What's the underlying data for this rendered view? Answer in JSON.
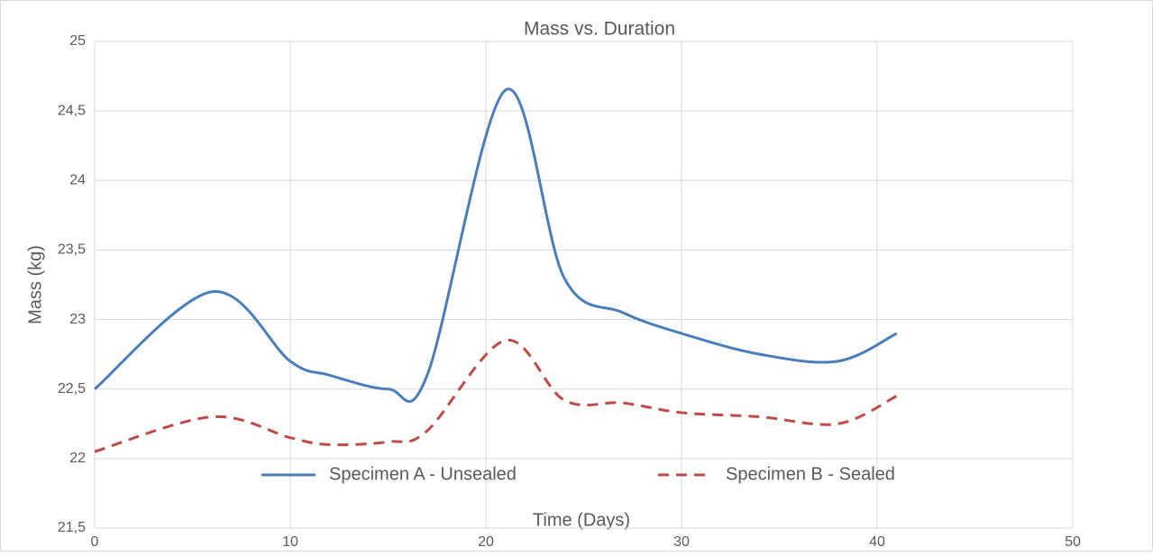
{
  "chart_data": {
    "type": "line",
    "title": "Mass vs. Duration",
    "x_label": "Time (Days)",
    "y_label": "Mass (kg)",
    "x": [
      0,
      6,
      10,
      12,
      15,
      17,
      21,
      24,
      27,
      30,
      34,
      38,
      41
    ],
    "series": [
      {
        "name": "Specimen A - Unsealed",
        "color": "#4a7ebb",
        "dash": false,
        "values": [
          22.5,
          23.2,
          22.7,
          22.6,
          22.5,
          22.6,
          24.65,
          23.3,
          23.05,
          22.9,
          22.75,
          22.7,
          22.9
        ]
      },
      {
        "name": "Specimen B - Sealed",
        "color": "#be4b48",
        "dash": true,
        "values": [
          22.05,
          22.3,
          22.15,
          22.1,
          22.12,
          22.2,
          22.85,
          22.42,
          22.4,
          22.33,
          22.3,
          22.25,
          22.45
        ]
      }
    ],
    "xlim": [
      0,
      50
    ],
    "xticks": [
      0,
      10,
      20,
      30,
      40,
      50
    ],
    "ylim": [
      21.5,
      25
    ],
    "yticks": [
      {
        "value": 21.5,
        "label": "21,5"
      },
      22,
      {
        "value": 22.5,
        "label": "22,5"
      },
      23,
      {
        "value": 23.5,
        "label": "23,5"
      },
      24,
      {
        "value": 24.5,
        "label": "24,5"
      },
      25
    ],
    "grid": true,
    "smooth": true,
    "legend": "bottom"
  }
}
